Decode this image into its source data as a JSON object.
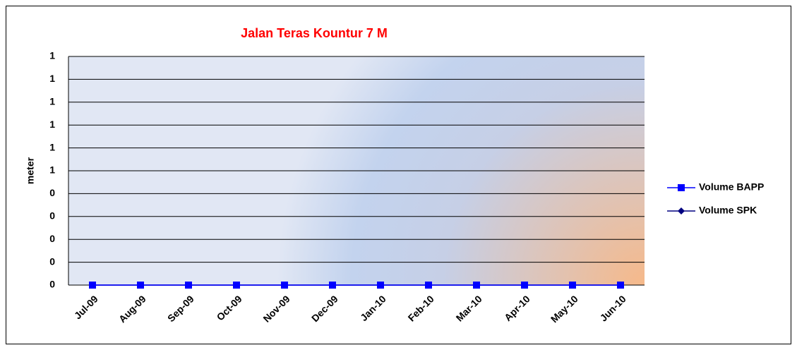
{
  "chart_data": {
    "type": "line",
    "title": "Jalan Teras Kountur 7 M",
    "y_label": "meter",
    "categories": [
      "Jul-09",
      "Aug-09",
      "Sep-09",
      "Oct-09",
      "Nov-09",
      "Dec-09",
      "Jan-10",
      "Feb-10",
      "Mar-10",
      "Apr-10",
      "May-10",
      "Jun-10"
    ],
    "series": [
      {
        "name": "Volume BAPP",
        "color": "#0000ff",
        "marker": "square",
        "values": [
          0,
          0,
          0,
          0,
          0,
          0,
          0,
          0,
          0,
          0,
          0,
          0
        ]
      },
      {
        "name": "Volume SPK",
        "color": "#000080",
        "marker": "diamond",
        "values": [
          0,
          0,
          0,
          0,
          0,
          0,
          0,
          0,
          0,
          0,
          0,
          0
        ]
      }
    ],
    "ylim": [
      0,
      1
    ],
    "yticks": [
      0,
      {
        "value": 0.1,
        "label": "0"
      },
      {
        "value": 0.2,
        "label": "0"
      },
      {
        "value": 0.3,
        "label": "0"
      },
      {
        "value": 0.4,
        "label": "0"
      },
      {
        "value": 0.5,
        "label": "1"
      },
      {
        "value": 0.6,
        "label": "1"
      },
      {
        "value": 0.7,
        "label": "1"
      },
      {
        "value": 0.8,
        "label": "1"
      },
      {
        "value": 0.9,
        "label": "1"
      },
      1
    ],
    "grid": true,
    "legend": "right"
  }
}
